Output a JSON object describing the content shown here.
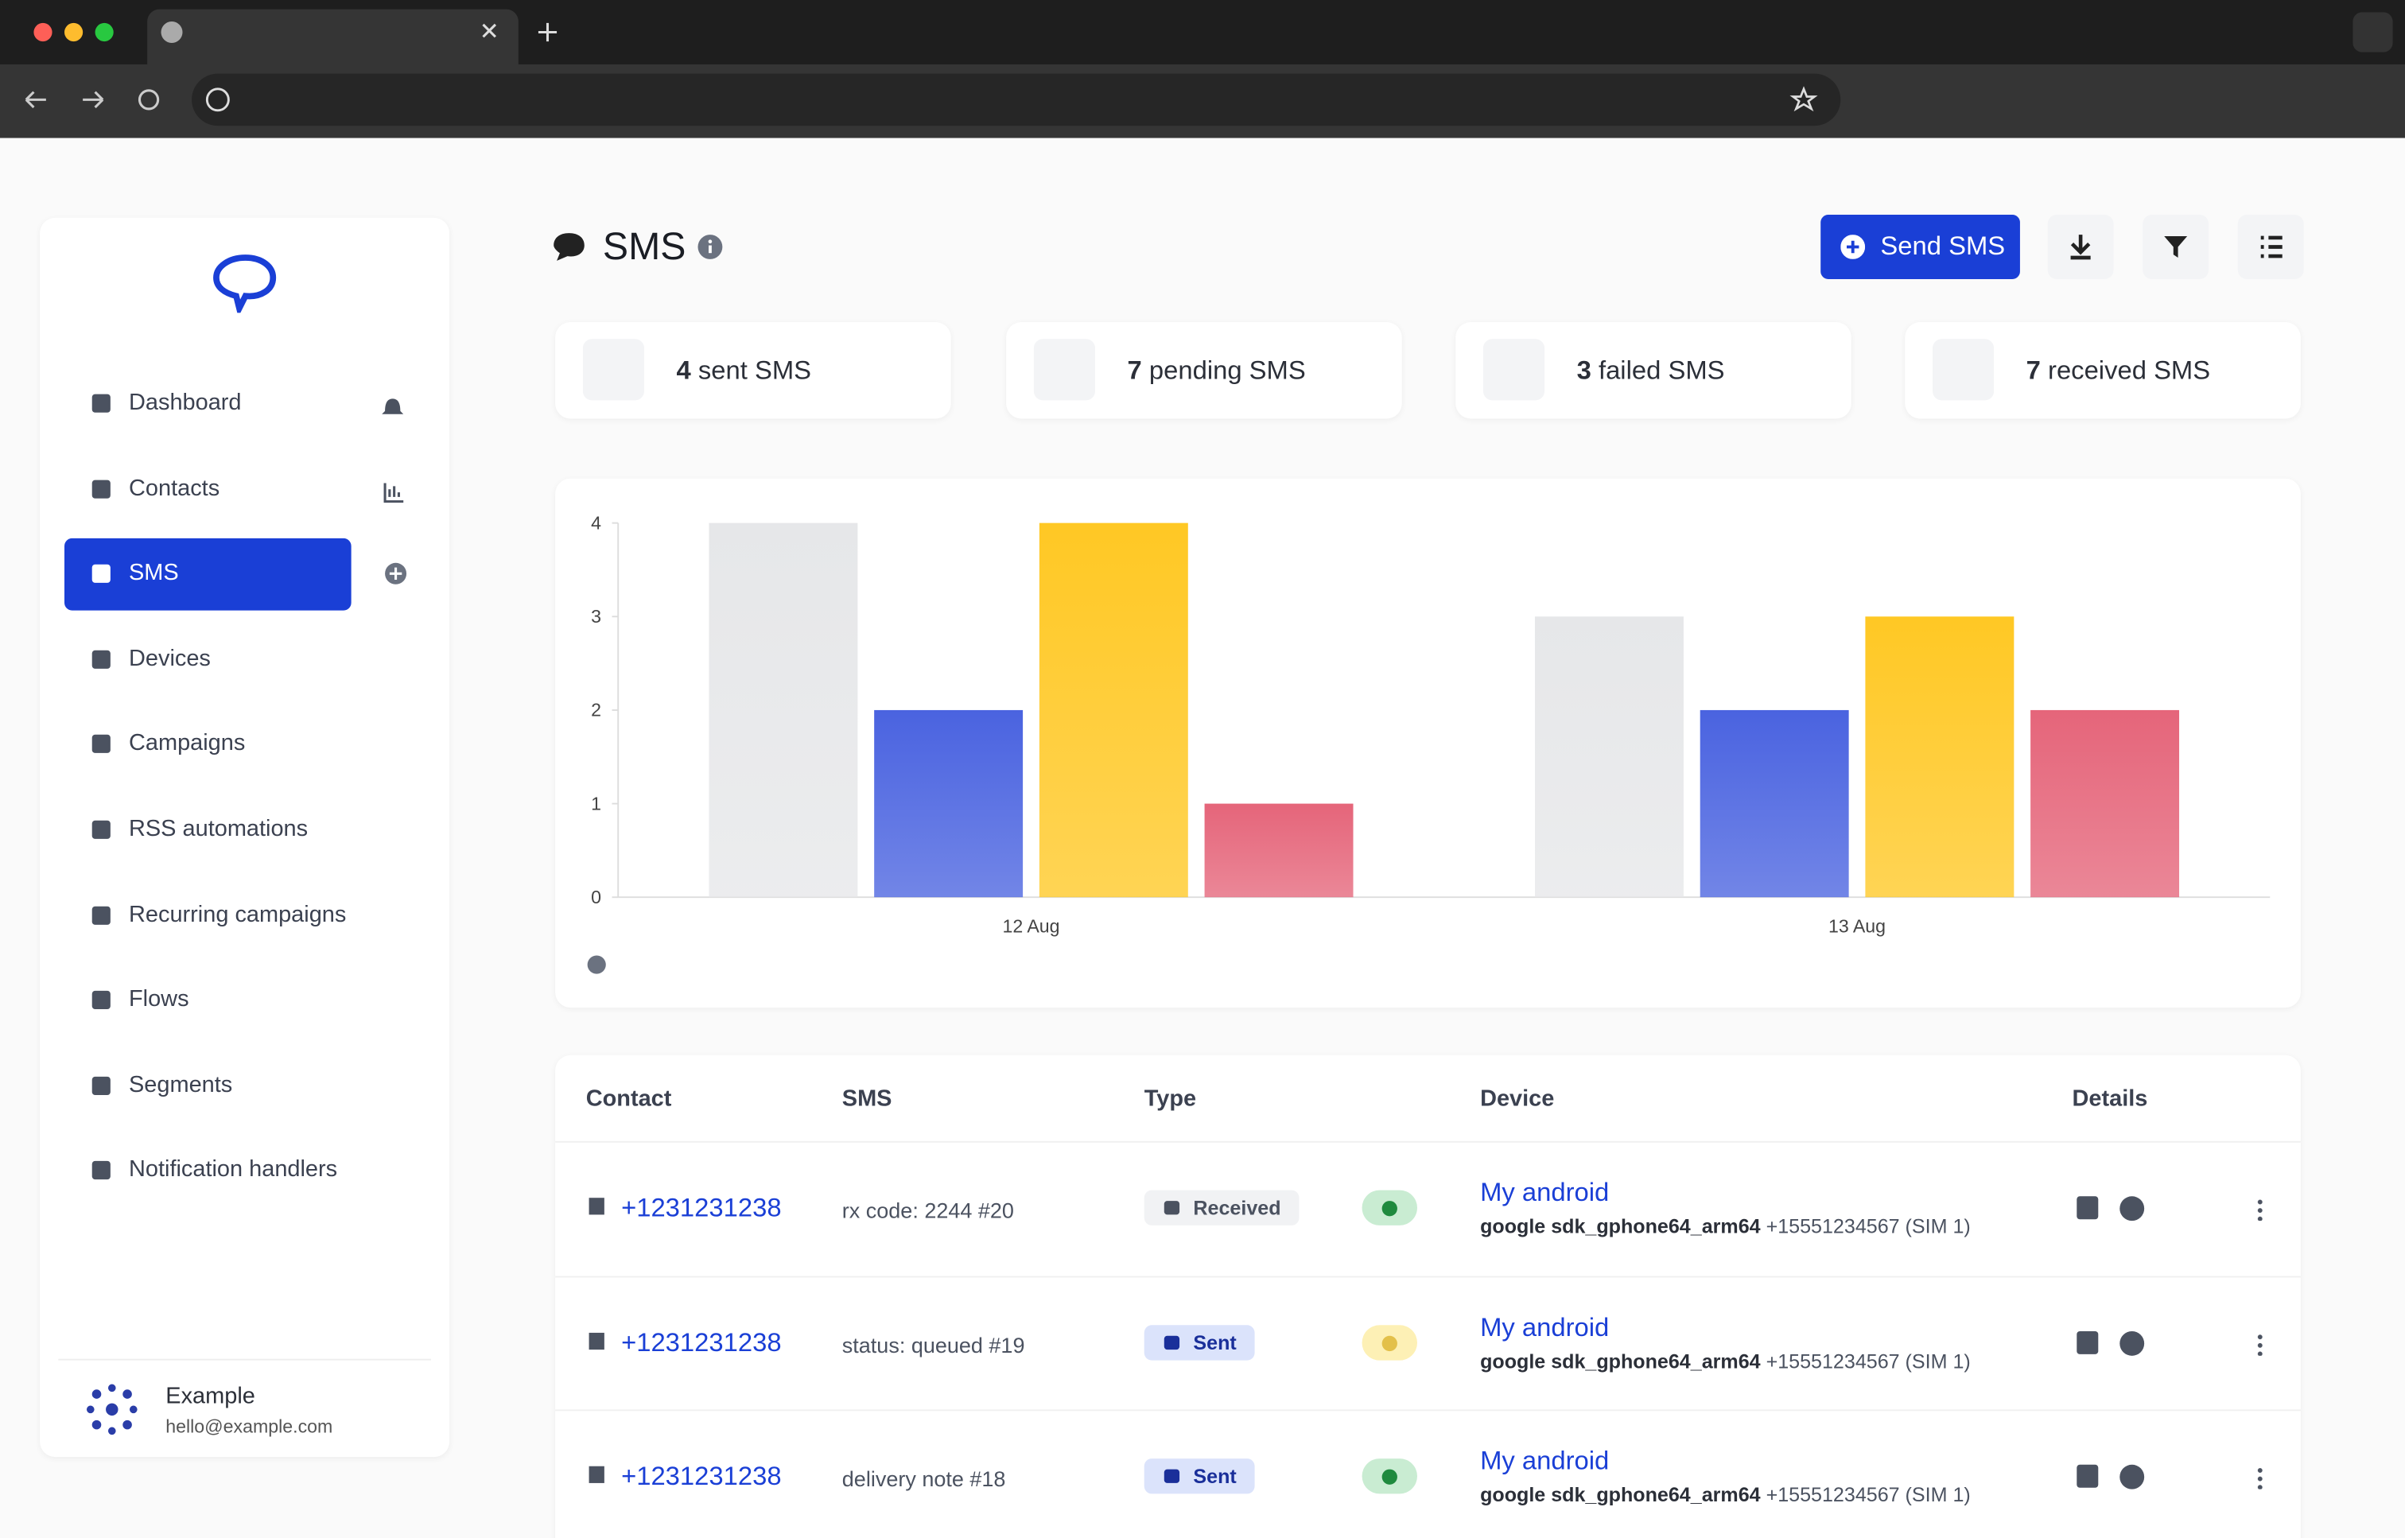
{
  "sidebar": {
    "nav": [
      "Dashboard",
      "Contacts",
      "SMS",
      "Devices",
      "Campaigns",
      "RSS automations",
      "Recurring campaigns",
      "Flows",
      "Segments",
      "Notification handlers"
    ],
    "user": {
      "name": "Example",
      "email": "hello@example.com"
    }
  },
  "header": {
    "title": "SMS",
    "send_button": "Send SMS"
  },
  "stats": [
    {
      "count": 4,
      "label": "sent SMS"
    },
    {
      "count": 7,
      "label": "pending SMS"
    },
    {
      "count": 3,
      "label": "failed SMS"
    },
    {
      "count": 7,
      "label": "received SMS"
    }
  ],
  "chart": {
    "type": "bar",
    "categories": [
      "12 Aug",
      "13 Aug"
    ],
    "series": [
      {
        "color": "#e6e7e9",
        "values": [
          4,
          3
        ]
      },
      {
        "color": "#4a63e0",
        "values": [
          2,
          2
        ]
      },
      {
        "color": "#ffc824",
        "values": [
          4,
          3
        ]
      },
      {
        "color": "#e5657a",
        "values": [
          1,
          2
        ]
      }
    ],
    "ylim": [
      0,
      4
    ],
    "yticks": [
      0,
      1,
      2,
      3,
      4
    ]
  },
  "table": {
    "headers": [
      "Contact",
      "SMS",
      "Type",
      "Device",
      "Details"
    ],
    "rows": [
      {
        "contact": "+1231231238",
        "sms": "rx code: 2244 #20",
        "type": "Received",
        "device": "My android",
        "model": "google sdk_gphone64_arm64",
        "number": "+15551234567 (SIM 1)"
      },
      {
        "contact": "+1231231238",
        "sms": "status: queued #19",
        "type": "Sent",
        "device": "My android",
        "model": "google sdk_gphone64_arm64",
        "number": "+15551234567 (SIM 1)"
      },
      {
        "contact": "+1231231238",
        "sms": "delivery note #18",
        "type": "Sent",
        "device": "My android",
        "model": "google sdk_gphone64_arm64",
        "number": "+15551234567 (SIM 1)"
      }
    ]
  }
}
